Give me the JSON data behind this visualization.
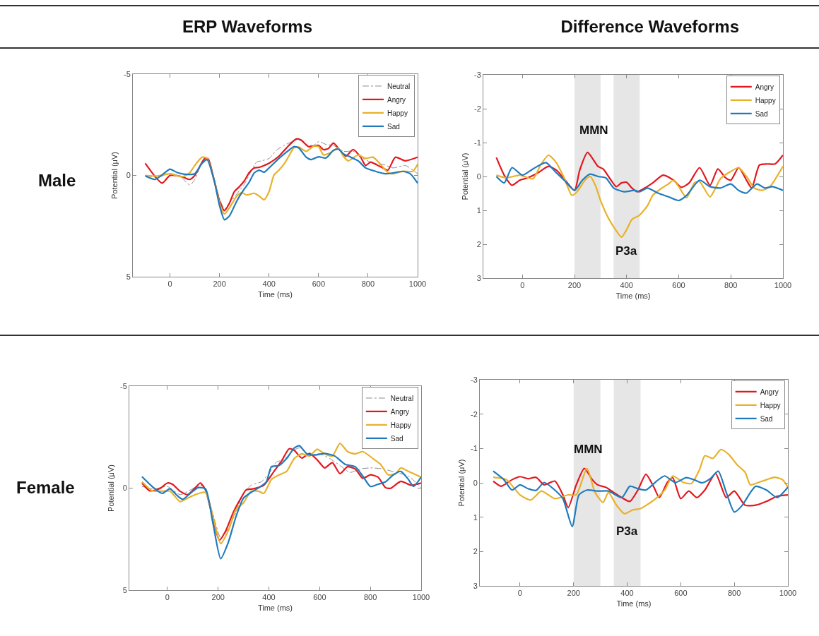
{
  "chart_data": [
    {
      "type": "line",
      "title": "ERP Waveforms",
      "xlabel": "Time (ms)",
      "ylabel": "Potential (μV)",
      "annotations": [
        "Male"
      ],
      "xlim": [
        -150,
        1000
      ],
      "ylim": [
        5,
        -5
      ],
      "xticks": [
        0,
        200,
        400,
        600,
        800,
        1000
      ],
      "yticks": [
        -5,
        0,
        5
      ],
      "grid": false,
      "legend": "top right",
      "marker": "none",
      "series": [
        {
          "name": "Neutral",
          "color": "#8c8c8c",
          "line_style": "dashed",
          "x": [
            -100,
            -50,
            0,
            40,
            80,
            100,
            130,
            150,
            180,
            200,
            220,
            240,
            270,
            300,
            330,
            350,
            370,
            400,
            430,
            460,
            490,
            520,
            550,
            580,
            600,
            630,
            660,
            700,
            740,
            780,
            820,
            860,
            900,
            950,
            1000
          ],
          "values": [
            0,
            0.09,
            -0.08,
            0.03,
            0.47,
            0.21,
            -0.66,
            -0.84,
            0.21,
            1.14,
            1.66,
            1.37,
            0.91,
            0.44,
            -0.26,
            -0.66,
            -0.72,
            -0.84,
            -1.24,
            -1.48,
            -1.65,
            -1.77,
            -1.53,
            -1.48,
            -1.67,
            -1.53,
            -1.48,
            -1.19,
            -1.19,
            -0.84,
            -0.6,
            -0.55,
            -0.37,
            -0.49,
            -0.08
          ]
        },
        {
          "name": "Angry",
          "color": "#e3171e",
          "line_style": "solid",
          "x": [
            -100,
            -32,
            0,
            50,
            80,
            100,
            140,
            155,
            180,
            200,
            220,
            240,
            260,
            280,
            300,
            320,
            340,
            360,
            380,
            400,
            440,
            480,
            510,
            530,
            560,
            600,
            620,
            640,
            660,
            690,
            710,
            740,
            770,
            790,
            810,
            830,
            860,
            880,
            910,
            950,
            1000
          ],
          "values": [
            -0.6,
            0.38,
            0,
            0.07,
            0.2,
            0,
            -0.84,
            -0.8,
            0.33,
            1.26,
            1.74,
            1.37,
            0.8,
            0.56,
            0.27,
            -0.14,
            -0.37,
            -0.4,
            -0.49,
            -0.6,
            -0.95,
            -1.48,
            -1.8,
            -1.74,
            -1.42,
            -1.48,
            -1.27,
            -1.33,
            -1.6,
            -1.19,
            -0.95,
            -1.28,
            -0.9,
            -0.49,
            -0.66,
            -0.55,
            -0.37,
            -0.26,
            -0.9,
            -0.72,
            -0.9
          ]
        },
        {
          "name": "Happy",
          "color": "#e8b12a",
          "line_style": "solid",
          "x": [
            -100,
            -50,
            0,
            50,
            80,
            100,
            130,
            150,
            180,
            200,
            220,
            240,
            270,
            290,
            310,
            340,
            360,
            380,
            400,
            420,
            440,
            460,
            480,
            500,
            520,
            550,
            580,
            600,
            620,
            650,
            680,
            700,
            720,
            760,
            790,
            820,
            850,
            880,
            900,
            940,
            980,
            1000
          ],
          "values": [
            0,
            0.03,
            -0.08,
            0.07,
            -0.14,
            -0.49,
            -0.9,
            -0.84,
            0.33,
            1.37,
            1.9,
            1.6,
            1.02,
            0.85,
            0.97,
            0.88,
            1.02,
            1.2,
            0.8,
            -0.02,
            -0.26,
            -0.55,
            -0.95,
            -1.36,
            -1.4,
            -1.19,
            -1.44,
            -1.42,
            -1.01,
            -1.13,
            -1.36,
            -0.95,
            -0.72,
            -1.01,
            -0.84,
            -0.9,
            -0.55,
            -0.14,
            -0.08,
            -0.2,
            -0.2,
            -0.55
          ]
        },
        {
          "name": "Sad",
          "color": "#1f7bbd",
          "line_style": "solid",
          "x": [
            -100,
            -60,
            -20,
            0,
            30,
            70,
            100,
            130,
            150,
            180,
            200,
            220,
            240,
            270,
            300,
            320,
            340,
            360,
            380,
            400,
            440,
            480,
            500,
            520,
            550,
            570,
            600,
            630,
            660,
            680,
            700,
            730,
            760,
            790,
            830,
            870,
            900,
            940,
            970,
            1000
          ],
          "values": [
            0.03,
            0.2,
            -0.14,
            -0.31,
            -0.14,
            -0.05,
            -0.08,
            -0.6,
            -0.78,
            0.33,
            1.49,
            2.19,
            2,
            1.26,
            0.67,
            0.33,
            -0.12,
            -0.26,
            -0.16,
            -0.37,
            -0.84,
            -1.24,
            -1.42,
            -1.36,
            -0.9,
            -0.78,
            -0.92,
            -0.86,
            -1.24,
            -1.3,
            -1.07,
            -0.9,
            -0.72,
            -0.37,
            -0.2,
            -0.08,
            -0.12,
            -0.2,
            -0.08,
            0.38
          ]
        }
      ]
    },
    {
      "type": "line",
      "title": "Difference Waveforms",
      "xlabel": "Time (ms)",
      "ylabel": "Potential (μV)",
      "annotations": [
        "MMN",
        "P3a"
      ],
      "xlim": [
        -150,
        1000
      ],
      "ylim": [
        3,
        -3
      ],
      "xticks": [
        0,
        200,
        400,
        600,
        800,
        1000
      ],
      "yticks": [
        -3,
        -2,
        -1,
        0,
        1,
        2,
        3
      ],
      "grid": false,
      "legend": "top right",
      "marker": "none",
      "bands": [
        {
          "axis": "x",
          "from": 200,
          "to": 300,
          "color": "#e6e6e6"
        },
        {
          "axis": "x",
          "from": 350,
          "to": 450,
          "color": "#e6e6e6"
        }
      ],
      "series": [
        {
          "name": "Angry",
          "color": "#e3171e",
          "line_style": "solid",
          "x": [
            -100,
            -70,
            -40,
            -10,
            20,
            60,
            100,
            130,
            160,
            200,
            220,
            250,
            270,
            290,
            310,
            340,
            360,
            380,
            400,
            420,
            440,
            470,
            500,
            540,
            580,
            610,
            640,
            680,
            720,
            750,
            780,
            800,
            830,
            860,
            880,
            910,
            940,
            970,
            1000
          ],
          "values": [
            -0.56,
            -0.04,
            0.26,
            0.11,
            0.04,
            -0.11,
            -0.3,
            -0.19,
            0.07,
            0.41,
            -0.19,
            -0.71,
            -0.52,
            -0.3,
            -0.22,
            0.11,
            0.3,
            0.19,
            0.17,
            0.34,
            0.45,
            0.34,
            0.19,
            -0.04,
            0.11,
            0.32,
            0.19,
            -0.26,
            0.26,
            -0.22,
            0.04,
            0.11,
            -0.26,
            0.11,
            0.34,
            -0.34,
            -0.37,
            -0.37,
            -0.63
          ]
        },
        {
          "name": "Happy",
          "color": "#e8b12a",
          "line_style": "solid",
          "x": [
            -100,
            -60,
            -10,
            40,
            70,
            100,
            130,
            160,
            190,
            210,
            240,
            260,
            280,
            300,
            330,
            360,
            380,
            400,
            420,
            450,
            480,
            500,
            530,
            560,
            580,
            600,
            630,
            660,
            680,
            720,
            760,
            800,
            830,
            860,
            890,
            920,
            950,
            980,
            1000
          ],
          "values": [
            -0.04,
            0.04,
            -0.04,
            0.07,
            -0.34,
            -0.63,
            -0.41,
            0.04,
            0.56,
            0.45,
            0.11,
            0,
            0.26,
            0.71,
            1.23,
            1.6,
            1.79,
            1.57,
            1.27,
            1.14,
            0.86,
            0.56,
            0.37,
            0.22,
            0.11,
            0.3,
            0.63,
            0.19,
            0.15,
            0.6,
            0.07,
            -0.15,
            -0.26,
            0,
            0.34,
            0.41,
            0.3,
            -0.04,
            -0.3
          ]
        },
        {
          "name": "Sad",
          "color": "#1f7bbd",
          "line_style": "solid",
          "x": [
            -100,
            -70,
            -40,
            0,
            40,
            90,
            130,
            160,
            200,
            230,
            260,
            290,
            320,
            350,
            390,
            430,
            450,
            480,
            520,
            560,
            600,
            630,
            680,
            720,
            760,
            800,
            830,
            860,
            900,
            930,
            960,
            1000
          ],
          "values": [
            0,
            0.19,
            -0.26,
            -0.04,
            -0.22,
            -0.41,
            -0.11,
            0.11,
            0.41,
            0.11,
            -0.07,
            0,
            0.04,
            0.34,
            0.45,
            0.41,
            0.45,
            0.34,
            0.49,
            0.6,
            0.71,
            0.56,
            0.11,
            0.3,
            0.34,
            0.22,
            0.41,
            0.49,
            0.22,
            0.34,
            0.3,
            0.41
          ]
        }
      ]
    },
    {
      "type": "line",
      "xlabel": "Time (ms)",
      "ylabel": "Potential (μV)",
      "annotations": [
        "Female"
      ],
      "xlim": [
        -150,
        1000
      ],
      "ylim": [
        5,
        -5
      ],
      "xticks": [
        0,
        200,
        400,
        600,
        800,
        1000
      ],
      "yticks": [
        -5,
        0,
        5
      ],
      "grid": false,
      "legend": "top right",
      "marker": "none",
      "series": [
        {
          "name": "Neutral",
          "color": "#8c8c8c",
          "line_style": "dashed",
          "x": [
            -100,
            -50,
            0,
            50,
            100,
            140,
            180,
            210,
            240,
            270,
            300,
            330,
            370,
            400,
            430,
            460,
            490,
            520,
            560,
            600,
            640,
            680,
            720,
            760,
            800,
            850,
            900,
            950,
            1000
          ],
          "values": [
            -0.08,
            0.03,
            -0.08,
            0.32,
            0.03,
            -0.14,
            1.29,
            2.43,
            1.98,
            1.18,
            0.26,
            -0.14,
            -0.31,
            -0.71,
            -1.28,
            -1.39,
            -1.79,
            -1.97,
            -1.62,
            -1.68,
            -1.45,
            -1.11,
            -0.77,
            -0.94,
            -0.99,
            -0.94,
            -0.77,
            -0.59,
            -0.02
          ]
        },
        {
          "name": "Angry",
          "color": "#e3171e",
          "line_style": "solid",
          "x": [
            -100,
            -70,
            -30,
            0,
            20,
            50,
            80,
            110,
            130,
            150,
            180,
            205,
            230,
            260,
            290,
            310,
            340,
            380,
            420,
            450,
            480,
            500,
            530,
            560,
            590,
            620,
            650,
            680,
            710,
            740,
            770,
            800,
            830,
            860,
            880,
            920,
            960,
            1000
          ],
          "values": [
            -0.25,
            0.13,
            0.03,
            -0.25,
            -0.19,
            0.15,
            0.32,
            -0.02,
            -0.25,
            0.09,
            1.52,
            2.55,
            2.09,
            1.18,
            0.49,
            0.09,
            0.03,
            -0.14,
            -0.82,
            -1.34,
            -1.93,
            -1.85,
            -1.47,
            -1.7,
            -1.39,
            -0.99,
            -1.25,
            -0.71,
            -1.05,
            -0.94,
            -0.48,
            -0.65,
            -0.54,
            -0.02,
            0.01,
            -0.33,
            -0.14,
            -0.25
          ]
        },
        {
          "name": "Happy",
          "color": "#e8b12a",
          "line_style": "solid",
          "x": [
            -100,
            -60,
            -20,
            10,
            50,
            80,
            110,
            150,
            180,
            210,
            240,
            270,
            300,
            330,
            360,
            380,
            410,
            440,
            470,
            500,
            530,
            560,
            590,
            620,
            650,
            680,
            710,
            740,
            770,
            810,
            840,
            870,
            900,
            920,
            950,
            1000
          ],
          "values": [
            -0.31,
            0.13,
            0.15,
            0.15,
            0.66,
            0.49,
            0.32,
            0.21,
            1.41,
            2.72,
            2.09,
            1.06,
            0.72,
            0.15,
            0.15,
            0.26,
            -0.42,
            -0.65,
            -0.82,
            -1.45,
            -1.68,
            -1.57,
            -1.91,
            -1.68,
            -1.57,
            -2.19,
            -1.79,
            -1.68,
            -1.79,
            -1.45,
            -1.17,
            -0.65,
            -0.71,
            -0.99,
            -0.82,
            -0.54
          ]
        },
        {
          "name": "Sad",
          "color": "#1f7bbd",
          "line_style": "solid",
          "x": [
            -100,
            -60,
            -20,
            10,
            40,
            60,
            90,
            120,
            150,
            180,
            210,
            240,
            270,
            300,
            330,
            360,
            390,
            410,
            440,
            470,
            500,
            520,
            550,
            580,
            620,
            660,
            700,
            740,
            770,
            800,
            830,
            860,
            890,
            920,
            950,
            970,
            1000
          ],
          "values": [
            -0.56,
            -0.08,
            0.26,
            0.03,
            0.38,
            0.55,
            0.26,
            -0.02,
            0.03,
            1.75,
            3.46,
            2.66,
            1.41,
            0.49,
            0.21,
            -0.02,
            -0.31,
            -1.05,
            -1.11,
            -1.45,
            -1.97,
            -2.08,
            -1.68,
            -1.62,
            -1.7,
            -1.57,
            -1.17,
            -1.05,
            -0.59,
            -0.08,
            -0.19,
            -0.31,
            -0.65,
            -0.82,
            -0.42,
            -0.08,
            -0.54
          ]
        }
      ]
    },
    {
      "type": "line",
      "xlabel": "Time (ms)",
      "ylabel": "Potential (μV)",
      "annotations": [
        "MMN",
        "P3a"
      ],
      "xlim": [
        -150,
        1000
      ],
      "ylim": [
        3,
        -3
      ],
      "xticks": [
        0,
        200,
        400,
        600,
        800,
        1000
      ],
      "yticks": [
        -3,
        -2,
        -1,
        0,
        1,
        2,
        3
      ],
      "grid": false,
      "legend": "top right",
      "marker": "none",
      "bands": [
        {
          "axis": "x",
          "from": 200,
          "to": 300,
          "color": "#e6e6e6"
        },
        {
          "axis": "x",
          "from": 350,
          "to": 450,
          "color": "#e6e6e6"
        }
      ],
      "series": [
        {
          "name": "Angry",
          "color": "#e3171e",
          "line_style": "solid",
          "x": [
            -100,
            -70,
            -30,
            0,
            30,
            60,
            90,
            130,
            160,
            180,
            210,
            240,
            270,
            290,
            320,
            350,
            380,
            410,
            440,
            470,
            500,
            520,
            550,
            570,
            600,
            630,
            660,
            690,
            730,
            770,
            800,
            840,
            880,
            920,
            960,
            1000
          ],
          "values": [
            -0.05,
            0.1,
            -0.09,
            -0.18,
            -0.12,
            -0.16,
            0.06,
            -0.05,
            0.35,
            0.72,
            0.06,
            -0.42,
            -0.09,
            0.06,
            0.13,
            0.28,
            0.43,
            0.54,
            0.21,
            -0.25,
            0.13,
            0.43,
            -0.01,
            -0.15,
            0.46,
            0.24,
            0.43,
            0.21,
            -0.27,
            0.43,
            0.24,
            0.65,
            0.65,
            0.54,
            0.39,
            0.35
          ]
        },
        {
          "name": "Happy",
          "color": "#e8b12a",
          "line_style": "solid",
          "x": [
            -100,
            -50,
            0,
            40,
            80,
            130,
            180,
            210,
            250,
            280,
            310,
            330,
            360,
            390,
            420,
            450,
            500,
            540,
            570,
            610,
            640,
            670,
            690,
            720,
            750,
            780,
            810,
            840,
            860,
            890,
            920,
            950,
            980,
            1000
          ],
          "values": [
            -0.16,
            -0.09,
            0.35,
            0.5,
            0.24,
            0.46,
            0.35,
            0.35,
            -0.42,
            0.28,
            0.57,
            0.28,
            0.65,
            0.9,
            0.79,
            0.75,
            0.5,
            0.21,
            -0.2,
            -0.01,
            0.02,
            -0.38,
            -0.79,
            -0.71,
            -0.97,
            -0.82,
            -0.53,
            -0.31,
            0.06,
            -0.01,
            -0.09,
            -0.16,
            -0.09,
            0.13
          ]
        },
        {
          "name": "Sad",
          "color": "#1f7bbd",
          "line_style": "solid",
          "x": [
            -100,
            -60,
            -30,
            0,
            30,
            60,
            90,
            130,
            160,
            195,
            220,
            250,
            290,
            330,
            380,
            410,
            440,
            470,
            510,
            540,
            580,
            620,
            650,
            680,
            710,
            740,
            770,
            800,
            830,
            860,
            880,
            920,
            960,
            1000
          ],
          "values": [
            -0.34,
            -0.09,
            0.21,
            0.06,
            0.17,
            0.22,
            -0.01,
            0.21,
            0.46,
            1.27,
            0.35,
            0.21,
            0.24,
            0.24,
            0.43,
            0.1,
            0.17,
            0.21,
            -0.05,
            -0.2,
            -0.01,
            -0.15,
            -0.09,
            0,
            -0.12,
            -0.34,
            0.28,
            0.85,
            0.65,
            0.28,
            0.1,
            0.21,
            0.43,
            0.13
          ]
        }
      ]
    }
  ]
}
